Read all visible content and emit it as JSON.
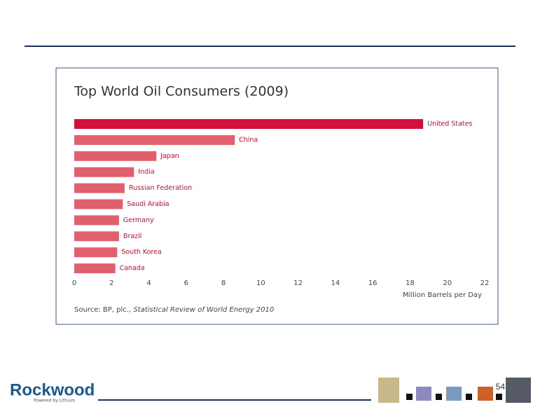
{
  "slide": {
    "logo": "Rockwood",
    "logo_tagline": "Powered by Lithium",
    "page_number": "54"
  },
  "chart_data": {
    "type": "barh",
    "title": "Top World Oil Consumers (2009)",
    "categories": [
      "United States",
      "China",
      "Japan",
      "India",
      "Russian Federation",
      "Saudi Arabia",
      "Germany",
      "Brazil",
      "South Korea",
      "Canada"
    ],
    "values": [
      18.7,
      8.6,
      4.4,
      3.2,
      2.7,
      2.6,
      2.4,
      2.4,
      2.3,
      2.2
    ],
    "colors": [
      "#d2103c",
      "#e0616d",
      "#e0616d",
      "#e0616d",
      "#e0616d",
      "#e0616d",
      "#e0616d",
      "#e0616d",
      "#e0616d",
      "#e0616d"
    ],
    "label_color": "#c8102e",
    "xlim": [
      0,
      22
    ],
    "xticks": [
      0,
      2,
      4,
      6,
      8,
      10,
      12,
      14,
      16,
      18,
      20,
      22
    ],
    "xlabel": "Million Barrels per Day",
    "source": {
      "prefix": "Source: BP, plc., ",
      "title": "Statistical Review of World Energy 2010"
    }
  }
}
